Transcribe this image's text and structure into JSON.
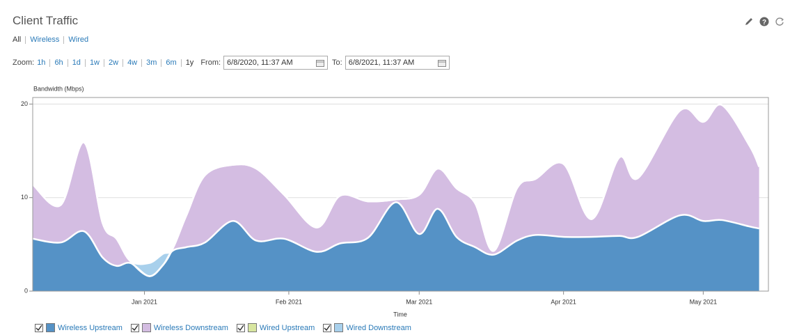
{
  "header": {
    "title": "Client Traffic",
    "filters": [
      "All",
      "Wireless",
      "Wired"
    ]
  },
  "controls": {
    "zoom_label": "Zoom:",
    "zoom_options": [
      "1h",
      "6h",
      "1d",
      "1w",
      "2w",
      "4w",
      "3m",
      "6m",
      "1y"
    ],
    "from_label": "From:",
    "from_value": "6/8/2020, 11:37 AM",
    "to_label": "To:",
    "to_value": "6/8/2021, 11:37 AM"
  },
  "chart_data": {
    "type": "stacked-area",
    "ylabel": "Bandwidth (Mbps)",
    "xlabel": "Time",
    "x": [
      -24,
      -18,
      -13,
      -9,
      -6,
      -3,
      1,
      4,
      6,
      9,
      13,
      19,
      24,
      30,
      37,
      42,
      48,
      54,
      59,
      63,
      67,
      71,
      75,
      80,
      84,
      90,
      96,
      102,
      106,
      115,
      120,
      124,
      130,
      132
    ],
    "xlim": [
      -24,
      134
    ],
    "xticks": [
      {
        "value": 0,
        "label": "Jan 2021"
      },
      {
        "value": 31,
        "label": "Feb 2021"
      },
      {
        "value": 59,
        "label": "Mar 2021"
      },
      {
        "value": 90,
        "label": "Apr 2021"
      },
      {
        "value": 120,
        "label": "May 2021"
      }
    ],
    "ylim": [
      0,
      20.7
    ],
    "yticks": [
      0,
      10,
      20
    ],
    "grid": true,
    "series": [
      {
        "name": "Wireless Upstream",
        "color": "#5592c6",
        "values": [
          5.6,
          5.2,
          6.4,
          3.6,
          2.7,
          3.0,
          1.6,
          2.8,
          4.3,
          4.7,
          5.2,
          7.5,
          5.4,
          5.6,
          4.2,
          5.1,
          5.7,
          9.5,
          6.1,
          8.8,
          5.8,
          4.7,
          3.9,
          5.4,
          6.0,
          5.8,
          5.8,
          5.9,
          5.8,
          8.1,
          7.5,
          7.6,
          6.9,
          6.7
        ]
      },
      {
        "name": "Wireless Downstream",
        "color": "#d4bde2",
        "values": [
          5.8,
          4.0,
          9.5,
          3.7,
          2.9,
          0.2,
          0,
          0,
          0.2,
          3.4,
          7.2,
          6.0,
          7.7,
          4.7,
          2.6,
          5.1,
          3.9,
          0.3,
          4.2,
          4.3,
          5.2,
          4.7,
          0.4,
          5.6,
          6.0,
          7.8,
          1.9,
          8.4,
          6.3,
          11.2,
          10.6,
          12.3,
          8.6,
          6.6
        ]
      },
      {
        "name": "Wired Upstream",
        "color": "#d8e6a0",
        "values": [
          0,
          0,
          0,
          0,
          0,
          0,
          0,
          0,
          0,
          0,
          0,
          0,
          0,
          0,
          0,
          0,
          0,
          0,
          0,
          0,
          0,
          0,
          0,
          0,
          0,
          0,
          0,
          0,
          0,
          0,
          0,
          0,
          0,
          0
        ]
      },
      {
        "name": "Wired Downstream",
        "color": "#a8d0ec",
        "values": [
          0,
          0,
          0,
          0,
          0,
          0,
          1.4,
          1.2,
          0,
          0,
          0,
          0,
          0,
          0,
          0,
          0,
          0,
          0,
          0,
          0,
          0,
          0,
          0,
          0,
          0,
          0,
          0,
          0,
          0,
          0,
          0,
          0,
          0,
          0
        ]
      }
    ]
  }
}
